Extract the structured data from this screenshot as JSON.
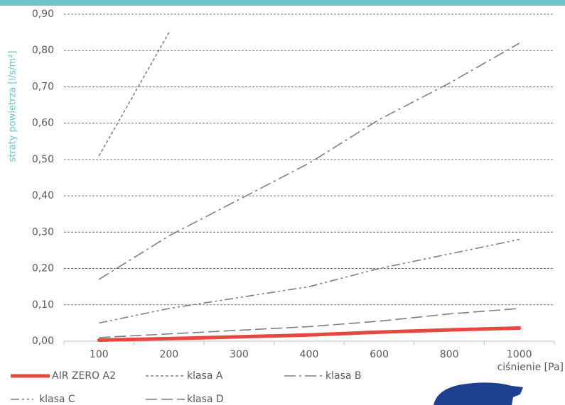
{
  "chart_data": {
    "type": "line",
    "y_label": "straty powietrza [l/s/m²]",
    "x_label": "ciśnienie [Pa]",
    "categories": [
      "100",
      "200",
      "300",
      "400",
      "600",
      "800",
      "1000"
    ],
    "series": [
      {
        "name": "AIR ZERO A2",
        "color": "#e8473f",
        "values": [
          0.003,
          0.007,
          0.012,
          0.017,
          0.025,
          0.031,
          0.036
        ]
      },
      {
        "name": "klasa A",
        "color": "#7f7f7f",
        "values": [
          0.51,
          0.85,
          null,
          null,
          null,
          null,
          null
        ]
      },
      {
        "name": "klasa B",
        "color": "#7f7f7f",
        "values": [
          0.17,
          0.29,
          0.39,
          0.49,
          0.61,
          0.71,
          0.82
        ]
      },
      {
        "name": "klasa C",
        "color": "#7f7f7f",
        "values": [
          0.05,
          0.09,
          0.12,
          0.15,
          0.2,
          0.24,
          0.28
        ]
      },
      {
        "name": "klasa D",
        "color": "#7f7f7f",
        "values": [
          0.01,
          0.02,
          0.03,
          0.04,
          0.055,
          0.075,
          0.09
        ]
      }
    ],
    "ylim": [
      0,
      0.9
    ],
    "yticks": [
      {
        "value": 0,
        "label": "0,00"
      },
      {
        "value": 0.1,
        "label": "0,10"
      },
      {
        "value": 0.2,
        "label": "0,20"
      },
      {
        "value": 0.3,
        "label": "0,30"
      },
      {
        "value": 0.4,
        "label": "0,40"
      },
      {
        "value": 0.5,
        "label": "0,50"
      },
      {
        "value": 0.6,
        "label": "0,60"
      },
      {
        "value": 0.7,
        "label": "0,70"
      },
      {
        "value": 0.8,
        "label": "0,80"
      },
      {
        "value": 0.9,
        "label": "0,90"
      }
    ],
    "grid": true
  }
}
